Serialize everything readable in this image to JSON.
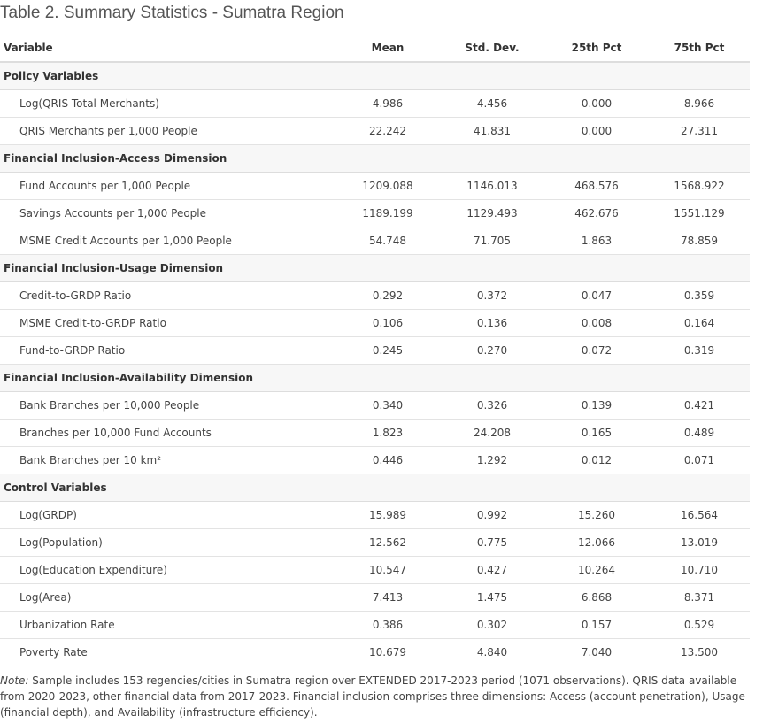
{
  "title": "Table 2. Summary Statistics - Sumatra Region",
  "columns": [
    "Variable",
    "Mean",
    "Std. Dev.",
    "25th Pct",
    "75th Pct"
  ],
  "sections": [
    {
      "name": "Policy Variables",
      "rows": [
        {
          "label": "Log(QRIS Total Merchants)",
          "values": [
            "4.986",
            "4.456",
            "0.000",
            "8.966"
          ]
        },
        {
          "label": "QRIS Merchants per 1,000 People",
          "values": [
            "22.242",
            "41.831",
            "0.000",
            "27.311"
          ]
        }
      ]
    },
    {
      "name": "Financial Inclusion-Access Dimension",
      "rows": [
        {
          "label": "Fund Accounts per 1,000 People",
          "values": [
            "1209.088",
            "1146.013",
            "468.576",
            "1568.922"
          ]
        },
        {
          "label": "Savings Accounts per 1,000 People",
          "values": [
            "1189.199",
            "1129.493",
            "462.676",
            "1551.129"
          ]
        },
        {
          "label": "MSME Credit Accounts per 1,000 People",
          "values": [
            "54.748",
            "71.705",
            "1.863",
            "78.859"
          ]
        }
      ]
    },
    {
      "name": "Financial Inclusion-Usage Dimension",
      "rows": [
        {
          "label": "Credit-to-GRDP Ratio",
          "values": [
            "0.292",
            "0.372",
            "0.047",
            "0.359"
          ]
        },
        {
          "label": "MSME Credit-to-GRDP Ratio",
          "values": [
            "0.106",
            "0.136",
            "0.008",
            "0.164"
          ]
        },
        {
          "label": "Fund-to-GRDP Ratio",
          "values": [
            "0.245",
            "0.270",
            "0.072",
            "0.319"
          ]
        }
      ]
    },
    {
      "name": "Financial Inclusion-Availability Dimension",
      "rows": [
        {
          "label": "Bank Branches per 10,000 People",
          "values": [
            "0.340",
            "0.326",
            "0.139",
            "0.421"
          ]
        },
        {
          "label": "Branches per 10,000 Fund Accounts",
          "values": [
            "1.823",
            "24.208",
            "0.165",
            "0.489"
          ]
        },
        {
          "label": "Bank Branches per 10 km²",
          "values": [
            "0.446",
            "1.292",
            "0.012",
            "0.071"
          ]
        }
      ]
    },
    {
      "name": "Control Variables",
      "rows": [
        {
          "label": "Log(GRDP)",
          "values": [
            "15.989",
            "0.992",
            "15.260",
            "16.564"
          ]
        },
        {
          "label": "Log(Population)",
          "values": [
            "12.562",
            "0.775",
            "12.066",
            "13.019"
          ]
        },
        {
          "label": "Log(Education Expenditure)",
          "values": [
            "10.547",
            "0.427",
            "10.264",
            "10.710"
          ]
        },
        {
          "label": "Log(Area)",
          "values": [
            "7.413",
            "1.475",
            "6.868",
            "8.371"
          ]
        },
        {
          "label": "Urbanization Rate",
          "values": [
            "0.386",
            "0.302",
            "0.157",
            "0.529"
          ]
        },
        {
          "label": "Poverty Rate",
          "values": [
            "10.679",
            "4.840",
            "7.040",
            "13.500"
          ]
        }
      ]
    }
  ],
  "note": {
    "prefix": "Note:",
    "text": " Sample includes 153 regencies/cities in Sumatra region over EXTENDED 2017-2023 period (1071 observations). QRIS data available from 2020-2023, other financial data from 2017-2023. Financial inclusion comprises three dimensions: Access (account penetration), Usage (financial depth), and Availability (infrastructure efficiency)."
  }
}
